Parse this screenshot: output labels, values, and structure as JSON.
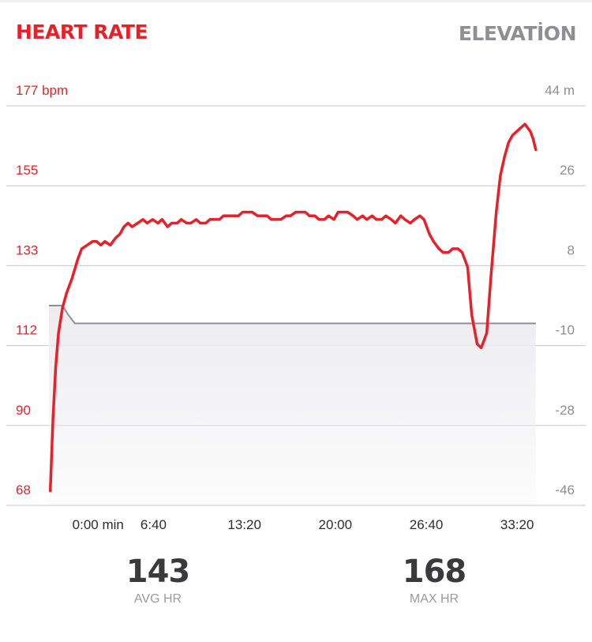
{
  "header": {
    "left_title": "HEART RATE",
    "right_title": "ELEVATİON"
  },
  "colors": {
    "heart_rate": "#e8202a",
    "elevation_line": "#8e8e93",
    "elevation_fill": "#ececef",
    "grid": "#c7c7cc",
    "axis_label": "#8e8e93",
    "time_label": "#2c2c2e"
  },
  "chart_data": {
    "type": "line",
    "title": "",
    "left_axis": {
      "ticks": [
        "177 bpm",
        "155",
        "133",
        "112",
        "90",
        "68"
      ],
      "ylim": [
        68,
        177
      ]
    },
    "right_axis": {
      "ticks": [
        "44 m",
        "26",
        "8",
        "-10",
        "-28",
        "-46"
      ],
      "ylim": [
        -46,
        44
      ]
    },
    "x_axis": {
      "ticks": [
        "0:00 min",
        "6:40",
        "13:20",
        "20:00",
        "26:40",
        "33:20"
      ],
      "tick_minutes": [
        0,
        6.667,
        13.333,
        20,
        26.667,
        33.333
      ],
      "xlim_minutes": [
        -1,
        35
      ]
    },
    "grid": true,
    "series": [
      {
        "key": "heart_rate",
        "axis": "left",
        "x": [
          -0.9,
          -0.7,
          -0.5,
          -0.3,
          0.0,
          0.3,
          0.7,
          1.1,
          1.4,
          1.8,
          2.2,
          2.5,
          2.8,
          3.1,
          3.5,
          3.9,
          4.2,
          4.5,
          4.8,
          5.1,
          5.5,
          5.9,
          6.2,
          6.6,
          7.0,
          7.3,
          7.7,
          8.0,
          8.4,
          8.7,
          9.1,
          9.4,
          9.8,
          10.1,
          10.5,
          10.8,
          11.2,
          11.5,
          11.8,
          12.2,
          12.5,
          12.9,
          13.2,
          13.6,
          13.9,
          14.3,
          14.6,
          15.0,
          15.3,
          15.7,
          16.0,
          16.4,
          16.7,
          17.1,
          17.4,
          17.8,
          18.1,
          18.5,
          18.8,
          19.2,
          19.5,
          19.9,
          20.2,
          20.6,
          20.9,
          21.3,
          21.6,
          22.0,
          22.3,
          22.7,
          23.0,
          23.4,
          23.7,
          24.1,
          24.4,
          24.8,
          25.1,
          25.5,
          25.8,
          26.2,
          26.5,
          26.9,
          27.2,
          27.6,
          27.9,
          28.3,
          28.6,
          29.0,
          29.3,
          29.7,
          30.0,
          30.4,
          30.7,
          31.1,
          31.4,
          31.8,
          32.1,
          32.4,
          32.7,
          33.0,
          33.3,
          33.6,
          33.9,
          34.1,
          34.3,
          34.5,
          34.7
        ],
        "y": [
          72,
          92,
          106,
          115,
          122,
          126,
          130,
          135,
          138,
          139,
          140,
          140,
          139,
          140,
          139,
          141,
          142,
          144,
          145,
          144,
          145,
          146,
          145,
          146,
          145,
          146,
          144,
          145,
          145,
          146,
          145,
          145,
          146,
          145,
          145,
          146,
          146,
          146,
          147,
          147,
          147,
          147,
          148,
          148,
          148,
          147,
          147,
          147,
          146,
          146,
          146,
          147,
          147,
          148,
          148,
          148,
          147,
          147,
          146,
          146,
          147,
          146,
          148,
          148,
          148,
          147,
          146,
          147,
          146,
          147,
          146,
          146,
          147,
          146,
          145,
          147,
          146,
          145,
          146,
          147,
          146,
          142,
          140,
          138,
          137,
          137,
          138,
          138,
          137,
          133,
          120,
          112,
          111,
          115,
          130,
          148,
          158,
          163,
          167,
          169,
          170,
          171,
          172,
          171,
          170,
          168,
          165
        ],
        "note": "approximate trace read from the chart"
      },
      {
        "key": "elevation",
        "axis": "right",
        "x": [
          -1,
          0,
          0.4,
          0.9,
          34.7
        ],
        "y": [
          -1,
          -1,
          -3,
          -5,
          -5
        ],
        "note": "approximate, filled area under a nearly flat line"
      }
    ]
  },
  "stats": [
    {
      "value": "143",
      "label": "AVG HR"
    },
    {
      "value": "168",
      "label": "MAX HR"
    }
  ]
}
